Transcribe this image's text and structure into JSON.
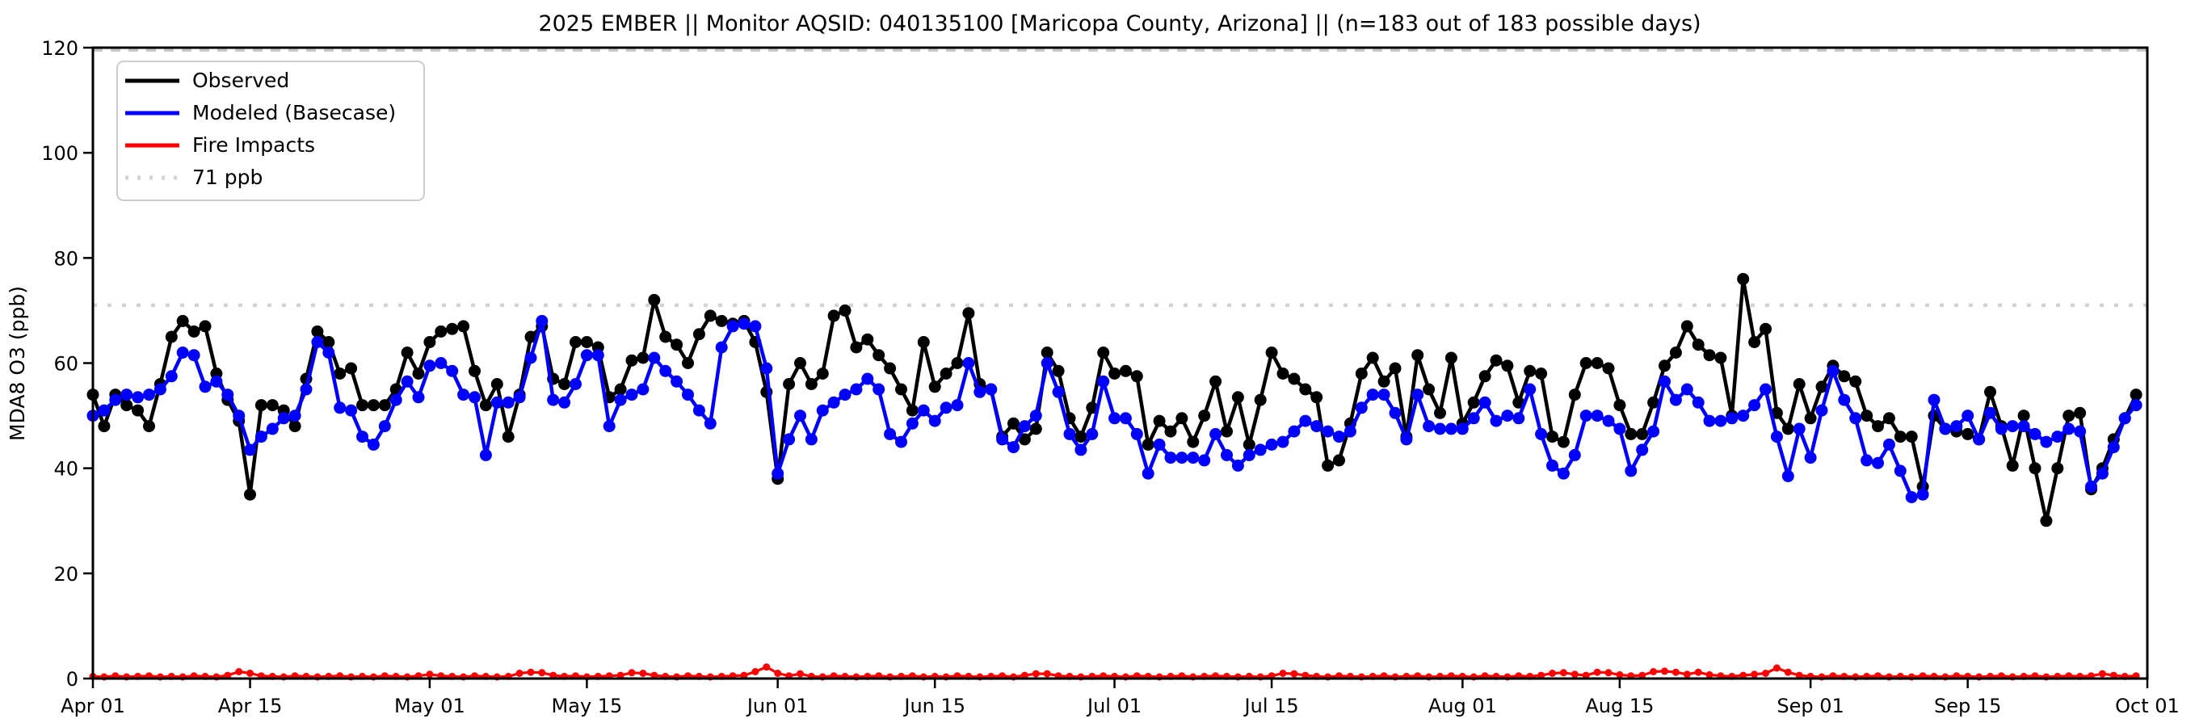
{
  "colors": {
    "background": "#ffffff",
    "observed": "#000000",
    "modeled": "#0000ff",
    "fire": "#ff0000",
    "threshold": "#d3d3d3",
    "spine": "#000000"
  },
  "chart_data": {
    "type": "line",
    "title": "2025 EMBER || Monitor AQSID: 040135100 [Maricopa County, Arizona] || (n=183 out of 183 possible days)",
    "ylabel": "MDA8 O3 (ppb)",
    "xlabel": "",
    "ylim": [
      0,
      120
    ],
    "yticks": [
      0,
      20,
      40,
      60,
      80,
      100,
      120
    ],
    "xtick_labels": [
      "Apr 01",
      "Apr 15",
      "May 01",
      "May 15",
      "Jun 01",
      "Jun 15",
      "Jul 01",
      "Jul 15",
      "Aug 01",
      "Aug 15",
      "Sep 01",
      "Sep 15",
      "Oct 01"
    ],
    "xtick_days": [
      0,
      14,
      30,
      44,
      61,
      75,
      91,
      105,
      122,
      136,
      153,
      167,
      183
    ],
    "x_range_days": [
      0,
      183
    ],
    "x_unit": "day index from Apr 01 (2025), one point per day, 183 days Apr 01 - Sep 30",
    "grid": false,
    "legend_position": "upper left",
    "threshold": {
      "label": "71 ppb",
      "value": 71,
      "style": "dotted"
    },
    "top_dashed_line_ppb": 119.5,
    "series": [
      {
        "name": "Observed",
        "color": "#000000",
        "marker": "circle",
        "values": [
          54,
          48,
          54,
          52,
          51,
          48,
          56,
          65,
          68,
          66,
          67,
          58,
          53,
          49,
          35,
          52,
          52,
          51,
          48,
          57,
          66,
          64,
          58,
          59,
          52,
          52,
          52,
          55,
          62,
          58,
          64,
          66,
          66.5,
          67,
          58.5,
          52,
          56,
          46,
          54,
          65,
          67,
          57,
          56,
          64,
          64,
          63,
          53.5,
          55,
          60.5,
          61,
          72,
          65,
          63.5,
          60,
          65.5,
          69,
          68,
          67.5,
          68,
          64,
          54.5,
          38,
          56,
          60,
          56,
          58,
          69,
          70,
          63,
          64.5,
          61.5,
          59,
          55,
          51,
          64,
          55.5,
          58,
          60,
          69.5,
          56,
          55,
          46,
          48.5,
          45.5,
          47.5,
          62,
          58.5,
          49.5,
          46,
          51.5,
          62,
          58,
          58.5,
          57.5,
          44.5,
          49,
          47,
          49.5,
          45,
          50,
          56.5,
          47,
          53.5,
          44.5,
          53,
          62,
          58,
          57,
          55,
          53.5,
          40.5,
          41.5,
          48.5,
          58,
          61,
          56.5,
          59,
          46,
          61.5,
          55,
          50.5,
          61,
          48.5,
          52.5,
          57.5,
          60.5,
          59.5,
          52.5,
          58.5,
          58,
          46,
          45,
          54,
          60,
          60,
          59,
          52,
          46.5,
          46.5,
          52.5,
          59.5,
          62,
          67,
          63.5,
          61.5,
          61,
          50,
          76,
          64,
          66.5,
          50.5,
          47.5,
          56,
          49.5,
          55.5,
          59.5,
          57.5,
          56.5,
          50,
          48,
          49.5,
          46,
          46,
          36.5,
          50,
          47.5,
          47,
          46.5,
          45.5,
          54.5,
          48,
          40.5,
          50,
          40,
          30,
          40,
          50,
          50.5,
          36,
          40,
          45.5,
          49.5,
          54
        ]
      },
      {
        "name": "Modeled (Basecase)",
        "color": "#0000ff",
        "marker": "circle",
        "values": [
          50,
          51,
          53,
          54,
          53.5,
          54,
          55,
          57.5,
          62,
          61.5,
          55.5,
          56.5,
          54,
          50,
          43.5,
          46,
          47.5,
          49.5,
          50,
          55,
          64,
          62,
          51.5,
          51,
          46,
          44.5,
          48,
          53,
          56.5,
          53.5,
          59.5,
          60,
          58.5,
          54,
          53.5,
          42.5,
          52.5,
          52.5,
          53.5,
          61,
          68,
          53,
          52.5,
          56,
          61.5,
          61.5,
          48,
          53,
          54,
          55,
          61,
          58.5,
          56.5,
          54,
          51,
          48.5,
          63,
          67,
          67.5,
          67,
          59,
          39,
          45.5,
          50,
          45.5,
          51,
          52.5,
          54,
          55,
          57,
          55,
          46.5,
          45,
          48.5,
          51,
          49,
          51.5,
          52,
          60,
          54.5,
          55,
          45.5,
          44,
          48,
          50,
          60,
          54.5,
          46.5,
          43.5,
          46.5,
          56.5,
          49.5,
          49.5,
          46.5,
          39,
          44.5,
          42,
          42,
          42,
          41.5,
          46.5,
          42.5,
          40.5,
          42.5,
          43.5,
          44.5,
          45,
          47,
          49,
          48,
          47,
          46,
          47,
          51.5,
          54,
          54,
          50.5,
          45.5,
          54,
          48,
          47.5,
          47.5,
          47.5,
          49.5,
          52.5,
          49,
          50,
          49.5,
          55,
          46.5,
          40.5,
          39,
          42.5,
          50,
          50,
          49,
          47.5,
          39.5,
          43.5,
          47,
          56.5,
          53,
          55,
          52.5,
          49,
          49,
          49.5,
          50,
          52,
          55,
          46,
          38.5,
          47.5,
          42,
          51,
          58.5,
          53,
          49.5,
          41.5,
          41,
          44.5,
          39.5,
          34.5,
          35,
          53,
          47.5,
          48,
          50,
          45.5,
          50.5,
          47.5,
          48,
          48,
          46.5,
          45,
          46,
          47.5,
          47,
          36.5,
          39,
          44,
          49.5,
          52
        ]
      },
      {
        "name": "Fire Impacts",
        "color": "#ff0000",
        "marker": "circle",
        "values": [
          0.4,
          0.3,
          0.5,
          0.3,
          0.4,
          0.5,
          0.3,
          0.4,
          0.3,
          0.5,
          0.4,
          0.3,
          0.6,
          1.3,
          1.0,
          0.5,
          0.4,
          0.3,
          0.5,
          0.4,
          0.3,
          0.4,
          0.5,
          0.3,
          0.4,
          0.3,
          0.5,
          0.4,
          0.3,
          0.5,
          0.8,
          0.5,
          0.4,
          0.3,
          0.5,
          0.4,
          0.3,
          0.4,
          1.0,
          1.2,
          1.1,
          0.6,
          0.4,
          0.5,
          0.3,
          0.4,
          0.5,
          0.6,
          1.1,
          1.0,
          0.6,
          0.4,
          0.3,
          0.5,
          0.4,
          0.3,
          0.4,
          0.5,
          0.6,
          1.3,
          2.2,
          1.0,
          0.5,
          0.9,
          0.4,
          0.3,
          0.5,
          0.4,
          0.3,
          0.4,
          0.5,
          0.3,
          0.4,
          0.5,
          0.3,
          0.4,
          0.3,
          0.5,
          0.4,
          0.3,
          0.4,
          0.5,
          0.3,
          0.6,
          0.9,
          0.9,
          0.5,
          0.4,
          0.3,
          0.4,
          0.5,
          0.4,
          0.3,
          0.5,
          0.4,
          0.3,
          0.4,
          0.5,
          0.3,
          0.4,
          0.5,
          0.4,
          0.3,
          0.4,
          0.3,
          0.5,
          1.0,
          0.9,
          0.6,
          0.4,
          0.3,
          0.5,
          0.4,
          0.3,
          0.4,
          0.5,
          0.3,
          0.4,
          0.5,
          0.3,
          0.4,
          0.5,
          0.4,
          0.3,
          0.5,
          0.4,
          0.3,
          0.5,
          0.4,
          0.6,
          1.0,
          1.1,
          0.8,
          0.6,
          1.2,
          1.1,
          0.7,
          0.5,
          0.6,
          1.3,
          1.4,
          1.2,
          0.8,
          1.2,
          0.7,
          0.5,
          0.4,
          0.6,
          0.8,
          1.0,
          2.0,
          1.2,
          0.6,
          0.4,
          0.3,
          0.5,
          0.4,
          0.3,
          0.4,
          0.5,
          0.3,
          0.4,
          0.3,
          0.5,
          0.4,
          0.3,
          0.5,
          0.4,
          0.3,
          0.4,
          0.5,
          0.3,
          0.4,
          0.5,
          0.3,
          0.4,
          0.5,
          0.4,
          0.5,
          0.9,
          0.6,
          0.4,
          0.5
        ]
      }
    ],
    "legend_entries": [
      "Observed",
      "Modeled (Basecase)",
      "Fire Impacts",
      "71 ppb"
    ]
  }
}
